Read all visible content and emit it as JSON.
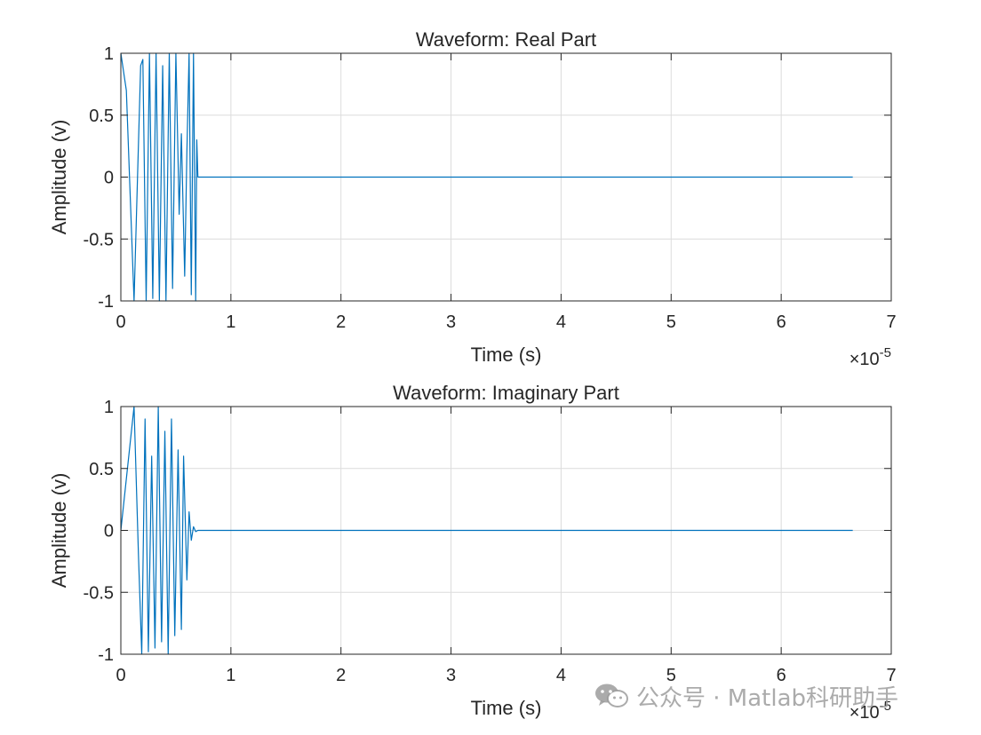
{
  "chart_data": [
    {
      "type": "line",
      "title": "Waveform: Real Part",
      "xlabel": "Time (s)",
      "ylabel": "Amplitude (v)",
      "xlim": [
        0,
        7
      ],
      "ylim": [
        -1,
        1
      ],
      "x_exponent_label": "×10",
      "x_exponent_power": "-5",
      "xticks": [
        "0",
        "1",
        "2",
        "3",
        "4",
        "5",
        "6",
        "7"
      ],
      "yticks": [
        "-1",
        "-0.5",
        "0",
        "0.5",
        "1"
      ],
      "grid": true,
      "color": "#0072BD",
      "series": [
        {
          "x": [
            0,
            0.05,
            0.12,
            0.18,
            0.2,
            0.23,
            0.26,
            0.29,
            0.32,
            0.35,
            0.38,
            0.41,
            0.44,
            0.47,
            0.5,
            0.53,
            0.55,
            0.58,
            0.6,
            0.62,
            0.64,
            0.66,
            0.68,
            0.69,
            0.7,
            6.65
          ],
          "y": [
            1,
            0.7,
            -1,
            0.9,
            0.95,
            -1,
            1,
            -0.98,
            1,
            -1,
            0.9,
            -1,
            1,
            -0.9,
            1,
            -0.3,
            0.35,
            -0.8,
            0.2,
            1,
            -0.95,
            1,
            -1,
            0.3,
            0,
            0
          ]
        }
      ]
    },
    {
      "type": "line",
      "title": "Waveform: Imaginary Part",
      "xlabel": "Time (s)",
      "ylabel": "Amplitude (v)",
      "xlim": [
        0,
        7
      ],
      "ylim": [
        -1,
        1
      ],
      "x_exponent_label": "×10",
      "x_exponent_power": "-5",
      "xticks": [
        "0",
        "1",
        "2",
        "3",
        "4",
        "5",
        "6",
        "7"
      ],
      "yticks": [
        "-1",
        "-0.5",
        "0",
        "0.5",
        "1"
      ],
      "grid": true,
      "color": "#0072BD",
      "series": [
        {
          "x": [
            0,
            0.06,
            0.12,
            0.16,
            0.19,
            0.22,
            0.25,
            0.28,
            0.31,
            0.34,
            0.37,
            0.4,
            0.43,
            0.46,
            0.49,
            0.52,
            0.55,
            0.57,
            0.6,
            0.62,
            0.64,
            0.66,
            0.68,
            0.7,
            6.65
          ],
          "y": [
            0,
            0.5,
            1,
            -0.2,
            -1,
            0.9,
            -0.98,
            0.6,
            -0.95,
            1,
            -0.9,
            0.8,
            -1,
            0.9,
            -0.85,
            0.65,
            -0.8,
            0.6,
            -0.4,
            0.15,
            -0.08,
            0.03,
            -0.01,
            0,
            0
          ]
        }
      ]
    }
  ],
  "watermark": {
    "text": "公众号 · Matlab科研助手",
    "icon": "wechat-icon"
  }
}
